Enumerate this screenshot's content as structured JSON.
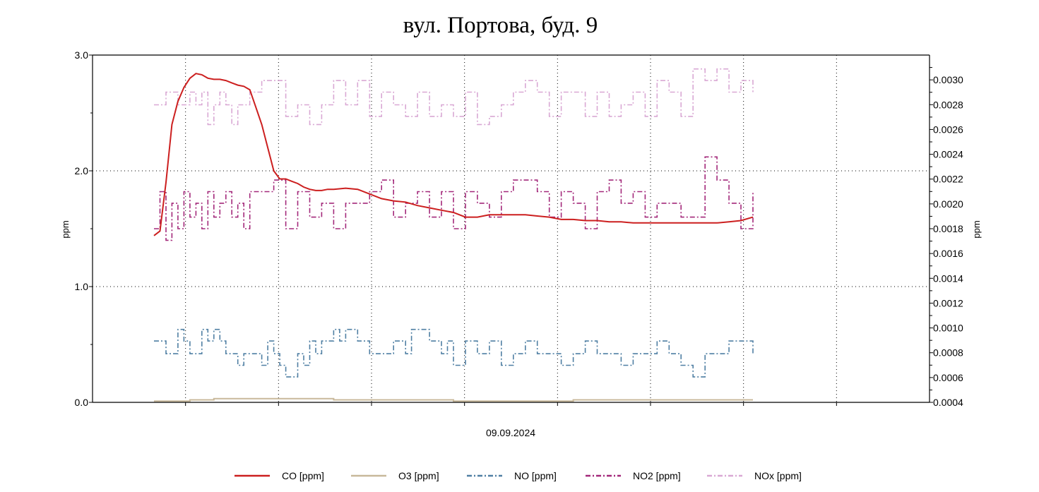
{
  "chart_data": {
    "type": "line",
    "title": "вул. Портова, буд. 9",
    "xlabel": "09.09.2024",
    "ylabel_left": "ppm",
    "ylabel_right": "ppm",
    "ylim_left": [
      0,
      3
    ],
    "yticks_left": [
      "0.0",
      "1.0",
      "2.0",
      "3.0"
    ],
    "ylim_right": [
      0.0004,
      0.0032
    ],
    "yticks_right": [
      "0.0004",
      "0.0006",
      "0.0008",
      "0.0010",
      "0.0012",
      "0.0014",
      "0.0016",
      "0.0018",
      "0.0020",
      "0.0022",
      "0.0024",
      "0.0026",
      "0.0028",
      "0.0030"
    ],
    "grid": true,
    "legend_position": "bottom",
    "x_index_range": [
      0,
      100
    ],
    "series": [
      {
        "name": "CO [ppm]",
        "color": "#cc1f1f",
        "style": "solid",
        "axis": "left",
        "x": [
          0,
          1,
          2,
          3,
          4,
          5,
          6,
          7,
          8,
          9,
          10,
          11,
          12,
          13,
          14,
          15,
          16,
          17,
          18,
          19,
          20,
          21,
          22,
          23,
          24,
          25,
          26,
          27,
          28,
          29,
          30,
          32,
          34,
          36,
          38,
          40,
          42,
          44,
          46,
          48,
          50,
          52,
          54,
          56,
          58,
          60,
          62,
          64,
          66,
          68,
          70,
          72,
          74,
          76,
          78,
          80,
          82,
          84,
          86,
          88,
          90,
          92,
          94,
          96,
          98,
          100
        ],
        "values": [
          1.44,
          1.48,
          1.9,
          2.4,
          2.6,
          2.72,
          2.8,
          2.84,
          2.83,
          2.8,
          2.79,
          2.79,
          2.78,
          2.76,
          2.74,
          2.73,
          2.7,
          2.55,
          2.4,
          2.2,
          2.0,
          1.93,
          1.93,
          1.91,
          1.89,
          1.86,
          1.84,
          1.83,
          1.83,
          1.84,
          1.84,
          1.85,
          1.84,
          1.8,
          1.76,
          1.74,
          1.73,
          1.7,
          1.68,
          1.66,
          1.64,
          1.6,
          1.6,
          1.62,
          1.62,
          1.62,
          1.62,
          1.61,
          1.6,
          1.58,
          1.58,
          1.57,
          1.57,
          1.56,
          1.56,
          1.55,
          1.55,
          1.55,
          1.55,
          1.55,
          1.55,
          1.55,
          1.55,
          1.56,
          1.57,
          1.6
        ]
      },
      {
        "name": "O3 [ppm]",
        "color": "#c8b89a",
        "style": "solid",
        "axis": "right",
        "x": [
          0,
          6,
          10,
          30,
          50,
          70,
          100
        ],
        "values": [
          0.00041,
          0.00042,
          0.00043,
          0.00042,
          0.00041,
          0.00042,
          0.00042
        ]
      },
      {
        "name": "NO [ppm]",
        "color": "#4f7fa3",
        "style": "dashdot",
        "axis": "left",
        "x": [
          0,
          2,
          4,
          5,
          6,
          8,
          9,
          10,
          11,
          12,
          14,
          15,
          16,
          18,
          19,
          20,
          21,
          22,
          24,
          25,
          26,
          27,
          28,
          30,
          31,
          32,
          34,
          36,
          38,
          40,
          42,
          43,
          44,
          46,
          48,
          49,
          50,
          52,
          54,
          56,
          58,
          60,
          62,
          64,
          66,
          68,
          70,
          72,
          74,
          76,
          78,
          80,
          82,
          84,
          86,
          88,
          90,
          92,
          94,
          96,
          98,
          100
        ],
        "values": [
          0.53,
          0.42,
          0.63,
          0.53,
          0.42,
          0.63,
          0.53,
          0.63,
          0.53,
          0.42,
          0.32,
          0.42,
          0.42,
          0.32,
          0.53,
          0.42,
          0.32,
          0.22,
          0.42,
          0.32,
          0.53,
          0.42,
          0.53,
          0.63,
          0.53,
          0.63,
          0.53,
          0.42,
          0.42,
          0.53,
          0.42,
          0.63,
          0.63,
          0.53,
          0.42,
          0.53,
          0.32,
          0.53,
          0.42,
          0.53,
          0.32,
          0.42,
          0.53,
          0.42,
          0.42,
          0.32,
          0.42,
          0.53,
          0.42,
          0.42,
          0.32,
          0.42,
          0.42,
          0.53,
          0.42,
          0.32,
          0.22,
          0.42,
          0.42,
          0.53,
          0.53,
          0.42
        ]
      },
      {
        "name": "NO2 [ppm]",
        "color": "#a3287a",
        "style": "dashdot",
        "axis": "left",
        "x": [
          0,
          1,
          2,
          3,
          4,
          5,
          6,
          7,
          8,
          9,
          10,
          11,
          12,
          13,
          14,
          15,
          16,
          18,
          20,
          22,
          24,
          26,
          28,
          30,
          32,
          34,
          36,
          38,
          40,
          42,
          44,
          46,
          48,
          50,
          52,
          54,
          56,
          58,
          60,
          62,
          64,
          66,
          68,
          70,
          72,
          74,
          76,
          78,
          80,
          82,
          84,
          86,
          88,
          90,
          92,
          94,
          96,
          98,
          100
        ],
        "values": [
          1.5,
          1.82,
          1.4,
          1.72,
          1.5,
          1.82,
          1.6,
          1.72,
          1.5,
          1.82,
          1.6,
          1.72,
          1.82,
          1.6,
          1.72,
          1.5,
          1.82,
          1.82,
          1.92,
          1.5,
          1.82,
          1.6,
          1.72,
          1.5,
          1.72,
          1.72,
          1.82,
          1.92,
          1.6,
          1.72,
          1.82,
          1.6,
          1.82,
          1.5,
          1.82,
          1.72,
          1.6,
          1.82,
          1.92,
          1.92,
          1.82,
          1.6,
          1.82,
          1.72,
          1.5,
          1.82,
          1.92,
          1.72,
          1.82,
          1.6,
          1.72,
          1.72,
          1.6,
          1.6,
          2.12,
          1.92,
          1.72,
          1.5,
          1.82
        ]
      },
      {
        "name": "NOx [ppm]",
        "color": "#d9a8d4",
        "style": "dashdot",
        "axis": "left",
        "x": [
          0,
          2,
          4,
          6,
          7,
          8,
          9,
          10,
          11,
          12,
          13,
          14,
          16,
          18,
          20,
          22,
          24,
          26,
          28,
          30,
          32,
          34,
          36,
          38,
          40,
          42,
          44,
          46,
          48,
          50,
          52,
          54,
          56,
          58,
          60,
          62,
          64,
          66,
          68,
          70,
          72,
          74,
          76,
          78,
          80,
          82,
          84,
          86,
          88,
          90,
          92,
          94,
          96,
          98,
          100
        ],
        "values": [
          2.57,
          2.68,
          2.57,
          2.68,
          2.57,
          2.68,
          2.4,
          2.57,
          2.68,
          2.57,
          2.4,
          2.57,
          2.68,
          2.78,
          2.78,
          2.47,
          2.57,
          2.4,
          2.57,
          2.78,
          2.57,
          2.78,
          2.47,
          2.68,
          2.57,
          2.47,
          2.68,
          2.47,
          2.57,
          2.47,
          2.68,
          2.4,
          2.47,
          2.57,
          2.68,
          2.78,
          2.68,
          2.47,
          2.68,
          2.68,
          2.47,
          2.68,
          2.47,
          2.57,
          2.68,
          2.47,
          2.78,
          2.68,
          2.47,
          2.88,
          2.78,
          2.88,
          2.68,
          2.78,
          2.68
        ]
      }
    ]
  }
}
